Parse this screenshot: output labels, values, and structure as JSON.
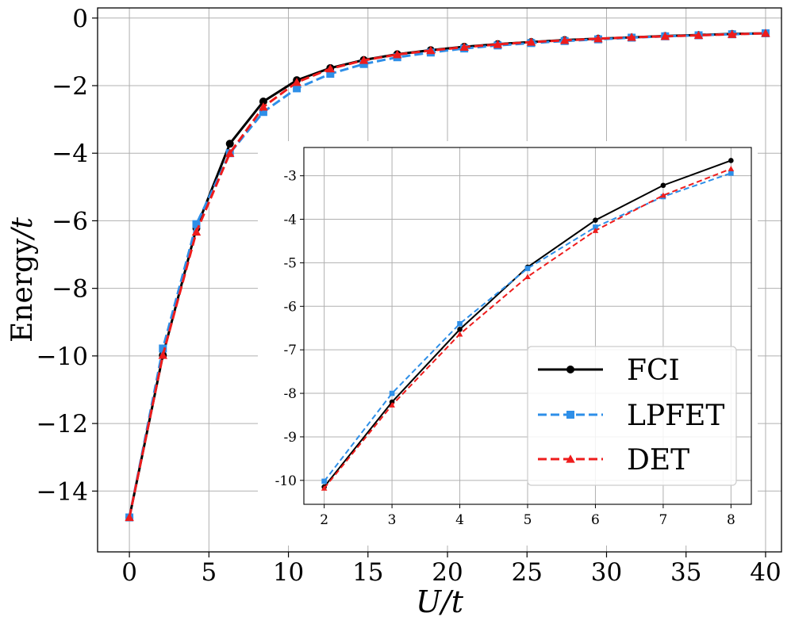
{
  "chart_data": [
    {
      "id": "main",
      "type": "line",
      "title": "",
      "xlabel_italic": "U",
      "xlabel_rest": "/t",
      "ylabel_word": "Energy",
      "ylabel_italic": "/t",
      "xlim": [
        -2,
        41
      ],
      "ylim": [
        -15.8,
        0.3
      ],
      "xticks": [
        0,
        5,
        10,
        15,
        20,
        25,
        30,
        35,
        40
      ],
      "yticks": [
        0,
        -2,
        -4,
        -6,
        -8,
        -10,
        -12,
        -14
      ],
      "ytick_labels": [
        "0",
        "−2",
        "−4",
        "−6",
        "−8",
        "−10",
        "−12",
        "−14"
      ],
      "xtick_labels": [
        "0",
        "5",
        "10",
        "15",
        "20",
        "25",
        "30",
        "35",
        "40"
      ],
      "grid": true,
      "x": [
        0,
        2.105,
        4.211,
        6.316,
        8.421,
        10.526,
        12.632,
        14.737,
        16.842,
        18.947,
        21.053,
        23.158,
        25.263,
        27.368,
        29.474,
        31.579,
        33.684,
        35.789,
        37.895,
        40
      ],
      "series": [
        {
          "name": "FCI",
          "color": "#000000",
          "dash": "solid",
          "marker": "circle",
          "values": [
            -14.78,
            -9.98,
            -6.22,
            -3.72,
            -2.47,
            -1.84,
            -1.48,
            -1.24,
            -1.07,
            -0.95,
            -0.85,
            -0.77,
            -0.71,
            -0.65,
            -0.61,
            -0.57,
            -0.53,
            -0.5,
            -0.47,
            -0.45
          ]
        },
        {
          "name": "LPFET",
          "color": "#2E8FE8",
          "dash": "dashed",
          "marker": "square",
          "values": [
            -14.78,
            -9.78,
            -6.1,
            -4.0,
            -2.78,
            -2.08,
            -1.65,
            -1.36,
            -1.16,
            -1.02,
            -0.9,
            -0.81,
            -0.74,
            -0.68,
            -0.63,
            -0.58,
            -0.54,
            -0.51,
            -0.48,
            -0.45
          ]
        },
        {
          "name": "DET",
          "color": "#EE1C1C",
          "dash": "dashed",
          "marker": "triangle",
          "values": [
            -14.78,
            -9.98,
            -6.33,
            -4.0,
            -2.63,
            -1.9,
            -1.5,
            -1.25,
            -1.08,
            -0.96,
            -0.86,
            -0.78,
            -0.71,
            -0.66,
            -0.61,
            -0.57,
            -0.54,
            -0.51,
            -0.48,
            -0.45
          ]
        }
      ]
    },
    {
      "id": "inset",
      "type": "line",
      "xlim": [
        1.7,
        8.3
      ],
      "ylim": [
        -10.55,
        -2.35
      ],
      "xticks": [
        2,
        3,
        4,
        5,
        6,
        7,
        8
      ],
      "yticks": [
        -3,
        -4,
        -5,
        -6,
        -7,
        -8,
        -9,
        -10
      ],
      "xtick_labels": [
        "2",
        "3",
        "4",
        "5",
        "6",
        "7",
        "8"
      ],
      "ytick_labels": [
        "-3",
        "-4",
        "-5",
        "-6",
        "-7",
        "-8",
        "-9",
        "-10"
      ],
      "grid": true,
      "x": [
        2,
        3,
        4,
        5,
        6,
        7,
        8
      ],
      "series": [
        {
          "name": "FCI",
          "color": "#000000",
          "dash": "solid",
          "marker": "circle",
          "values": [
            -10.15,
            -8.2,
            -6.53,
            -5.1,
            -4.02,
            -3.22,
            -2.65
          ]
        },
        {
          "name": "LPFET",
          "color": "#2E8FE8",
          "dash": "dashed",
          "marker": "square",
          "values": [
            -10.02,
            -8.0,
            -6.4,
            -5.13,
            -4.18,
            -3.48,
            -2.94
          ]
        },
        {
          "name": "DET",
          "color": "#EE1C1C",
          "dash": "dashed",
          "marker": "triangle",
          "values": [
            -10.18,
            -8.27,
            -6.64,
            -5.32,
            -4.26,
            -3.45,
            -2.84
          ]
        }
      ],
      "legend": {
        "placement": "lower-right",
        "entries": [
          "FCI",
          "LPFET",
          "DET"
        ]
      }
    }
  ]
}
